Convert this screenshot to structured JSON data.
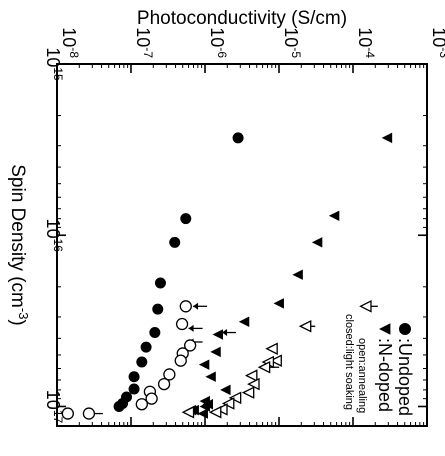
{
  "chart_data": {
    "type": "scatter",
    "title": "",
    "xlabel": "Photoconductivity (S/cm)",
    "ylabel": "Spin Density (cm-3)",
    "x_scale": "log",
    "y_scale": "log",
    "xlim": [
      1e-08,
      0.001
    ],
    "ylim": [
      1000000000000000.0,
      1.3e+17
    ],
    "x_ticks": [
      {
        "value": 1e-08,
        "base": "10",
        "exp": "-8"
      },
      {
        "value": 1e-07,
        "base": "10",
        "exp": "-7"
      },
      {
        "value": 1e-06,
        "base": "10",
        "exp": "-6"
      },
      {
        "value": 1e-05,
        "base": "10",
        "exp": "-5"
      },
      {
        "value": 0.0001,
        "base": "10",
        "exp": "-4"
      },
      {
        "value": 0.001,
        "base": "10",
        "exp": "-3"
      }
    ],
    "y_ticks": [
      {
        "value": 1000000000000000.0,
        "base": "10",
        "exp": "15"
      },
      {
        "value": 1e+16,
        "base": "10",
        "exp": "16"
      },
      {
        "value": 1e+17,
        "base": "10",
        "exp": "17"
      }
    ],
    "legend": {
      "position": "bottom-right",
      "entries": [
        {
          "symbol": "●",
          "label": ":Undoped"
        },
        {
          "symbol": "▲",
          "label": ":N-doped"
        }
      ],
      "notes": [
        "open:annealing",
        "closed:light soaking"
      ]
    },
    "series": [
      {
        "marker": "filled-circle",
        "values": [
          {
            "x": 2.8e-06,
            "y": 2700000000000000.0
          },
          {
            "x": 5.5e-07,
            "y": 8000000000000000.0
          },
          {
            "x": 3.9e-07,
            "y": 1.1e+16
          },
          {
            "x": 2.5e-07,
            "y": 1.9e+16
          },
          {
            "x": 2.3e-07,
            "y": 2.7e+16
          },
          {
            "x": 2.1e-07,
            "y": 3.7e+16
          },
          {
            "x": 1.6e-07,
            "y": 4.5e+16
          },
          {
            "x": 1.4e-07,
            "y": 5.5e+16
          },
          {
            "x": 1.1e-07,
            "y": 6.7e+16
          },
          {
            "x": 1.1e-07,
            "y": 7.9e+16
          },
          {
            "x": 8.7e-08,
            "y": 8.8e+16
          },
          {
            "x": 7.7e-08,
            "y": 9.6e+16
          },
          {
            "x": 6.9e-08,
            "y": 1e+17
          }
        ]
      },
      {
        "marker": "open-circle",
        "values": [
          {
            "x": 5.5e-07,
            "y": 2.6e+16
          },
          {
            "x": 4.9e-07,
            "y": 3.3e+16
          },
          {
            "x": 6.3e-07,
            "y": 4.4e+16
          },
          {
            "x": 5e-07,
            "y": 4.9e+16
          },
          {
            "x": 4.7e-07,
            "y": 5.4e+16
          },
          {
            "x": 3.3e-07,
            "y": 6.5e+16
          },
          {
            "x": 2.8e-07,
            "y": 7.4e+16
          },
          {
            "x": 1.8e-07,
            "y": 8.2e+16
          },
          {
            "x": 1.9e-07,
            "y": 9e+16
          },
          {
            "x": 1.4e-07,
            "y": 9.7e+16
          },
          {
            "x": 2.7e-08,
            "y": 1.1e+17
          },
          {
            "x": 1.4e-08,
            "y": 1.1e+17
          }
        ]
      },
      {
        "marker": "filled-triangle",
        "values": [
          {
            "x": 0.00029,
            "y": 2700000000000000.0
          },
          {
            "x": 5.6e-05,
            "y": 7700000000000000.0
          },
          {
            "x": 3.3e-05,
            "y": 1.1e+16
          },
          {
            "x": 1.8e-05,
            "y": 1.7e+16
          },
          {
            "x": 1e-05,
            "y": 2.5e+16
          },
          {
            "x": 3.4e-06,
            "y": 3.2e+16
          },
          {
            "x": 1.5e-06,
            "y": 3.8e+16
          },
          {
            "x": 1.4e-06,
            "y": 4.8e+16
          },
          {
            "x": 9.8e-07,
            "y": 5.7e+16
          },
          {
            "x": 1.2e-06,
            "y": 6.7e+16
          },
          {
            "x": 1.9e-06,
            "y": 8e+16
          },
          {
            "x": 1e-06,
            "y": 9.3e+16
          },
          {
            "x": 1.1e-06,
            "y": 9.7e+16
          },
          {
            "x": 1e-06,
            "y": 1e+17
          },
          {
            "x": 9.4e-07,
            "y": 1.1e+17
          },
          {
            "x": 7.1e-07,
            "y": 1.05e+17
          },
          {
            "x": 6.5e-07,
            "y": 1.05e+17
          }
        ]
      },
      {
        "marker": "open-triangle",
        "values": [
          {
            "x": 0.00015,
            "y": 2.6e+16
          },
          {
            "x": 2.3e-05,
            "y": 3.4e+16
          },
          {
            "x": 8.1e-06,
            "y": 4.6e+16
          },
          {
            "x": 9.2e-06,
            "y": 5.4e+16
          },
          {
            "x": 7.2e-06,
            "y": 5.5e+16
          },
          {
            "x": 6.4e-06,
            "y": 5.9e+16
          },
          {
            "x": 4.3e-06,
            "y": 6.6e+16
          },
          {
            "x": 4.6e-06,
            "y": 7.4e+16
          },
          {
            "x": 3.9e-06,
            "y": 8.3e+16
          },
          {
            "x": 2.6e-06,
            "y": 8.9e+16
          },
          {
            "x": 2.1e-06,
            "y": 9.6e+16
          },
          {
            "x": 1.7e-06,
            "y": 1.04e+17
          },
          {
            "x": 1.4e-06,
            "y": 1.08e+17
          },
          {
            "x": 6e-07,
            "y": 1.08e+17
          }
        ]
      }
    ],
    "arrows": [
      {
        "x": 0.00014,
        "y": 2.6e+16
      },
      {
        "x": 2e-05,
        "y": 3.4e+16
      },
      {
        "x": 6.5e-06,
        "y": 5.9e+16
      },
      {
        "x": 1.7e-06,
        "y": 3.7e+16
      },
      {
        "x": 6.9e-07,
        "y": 2.6e+16
      },
      {
        "x": 6e-07,
        "y": 3.5e+16
      },
      {
        "x": 6e-07,
        "y": 4.2e+16
      },
      {
        "x": 5.5e-07,
        "y": 1.1e+17
      },
      {
        "x": 2.7e-08,
        "y": 1.1e+17
      }
    ]
  }
}
